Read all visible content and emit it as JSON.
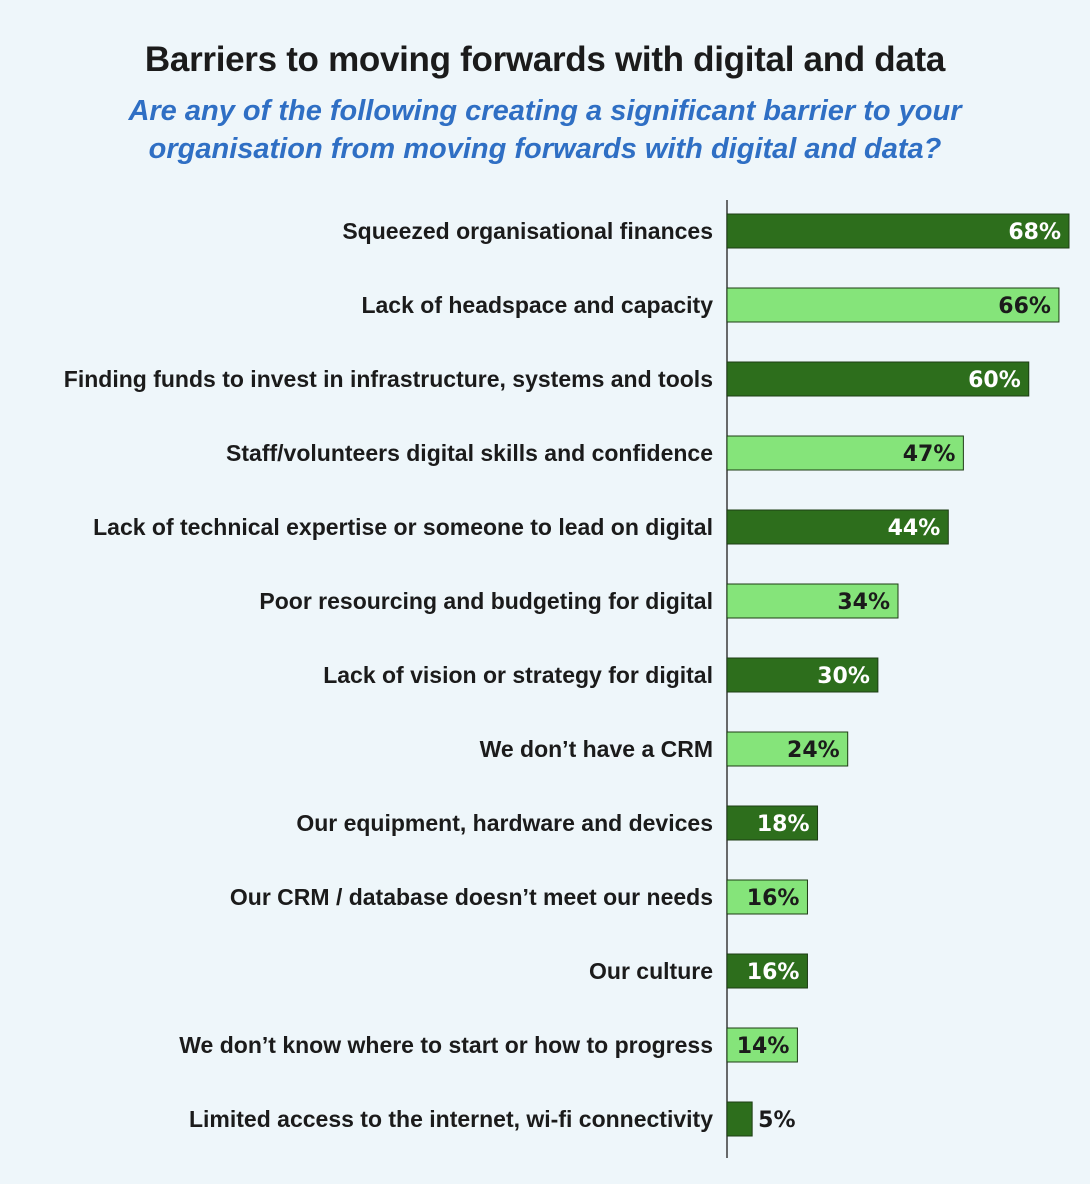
{
  "title": "Barriers to moving forwards with digital and data",
  "subtitle_line1": "Are any of the following creating a significant barrier to your",
  "subtitle_line2": "organisation from moving forwards with digital and data?",
  "colors": {
    "background": "#eef6fa",
    "dark_bar": "#2d6e1c",
    "light_bar": "#85e47a",
    "subtitle": "#2f6fc4",
    "text": "#1b1b1b"
  },
  "chart_data": {
    "type": "bar",
    "orientation": "horizontal",
    "title": "Barriers to moving forwards with digital and data",
    "subtitle": "Are any of the following creating a significant barrier to your organisation from moving forwards with digital and data?",
    "xlabel": "",
    "ylabel": "",
    "xlim": [
      0,
      68
    ],
    "unit": "%",
    "categories": [
      "Squeezed organisational finances",
      "Lack of headspace and capacity",
      "Finding funds to invest in infrastructure, systems and tools",
      "Staff/volunteers digital skills and confidence",
      "Lack of technical expertise or someone to lead on digital",
      "Poor resourcing and budgeting for digital",
      "Lack of vision or strategy for digital",
      "We don’t have a CRM",
      "Our equipment, hardware and devices",
      "Our CRM / database doesn’t meet our needs",
      "Our culture",
      "We don’t know where to start or how to progress",
      "Limited access to the internet, wi-fi connectivity"
    ],
    "values": [
      68,
      66,
      60,
      47,
      44,
      34,
      30,
      24,
      18,
      16,
      16,
      14,
      5
    ],
    "value_labels": [
      "68%",
      "66%",
      "60%",
      "47%",
      "44%",
      "34%",
      "30%",
      "24%",
      "18%",
      "16%",
      "16%",
      "14%",
      "5%"
    ]
  }
}
